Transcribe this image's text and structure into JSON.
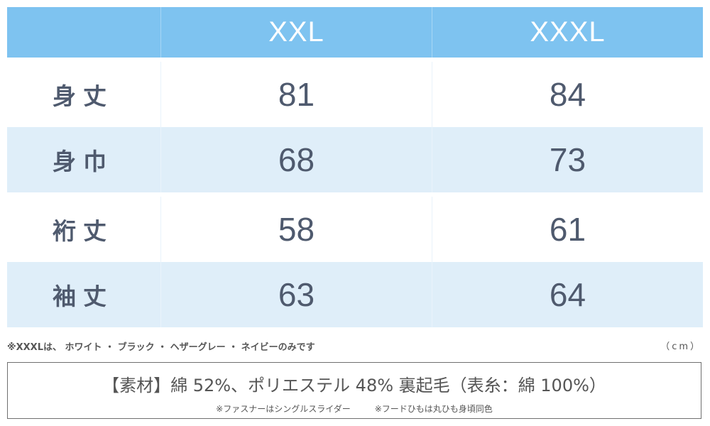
{
  "table": {
    "columns": [
      "",
      "XXL",
      "XXXL"
    ],
    "rows": [
      {
        "label": "身丈",
        "values": [
          "81",
          "84"
        ]
      },
      {
        "label": "身巾",
        "values": [
          "68",
          "73"
        ]
      },
      {
        "label": "裄丈",
        "values": [
          "58",
          "61"
        ]
      },
      {
        "label": "袖丈",
        "values": [
          "63",
          "64"
        ]
      }
    ]
  },
  "notes": {
    "availability": "※XXXLは、 ホワイト ・ ブラック ・ ヘザーグレー ・ ネイビーのみです",
    "unit": "（cm）"
  },
  "material": {
    "main": "【素材】綿 52%、ポリエステル 48% 裏起毛（表糸：綿 100%）",
    "fastener": "※ファスナーはシングルスライダー",
    "cord": "※フードひもは丸ひも身頃同色"
  },
  "colors": {
    "header_bg": "#7ec3f0",
    "alt_row_bg": "#dfeef9",
    "text": "#4f5a6e"
  }
}
